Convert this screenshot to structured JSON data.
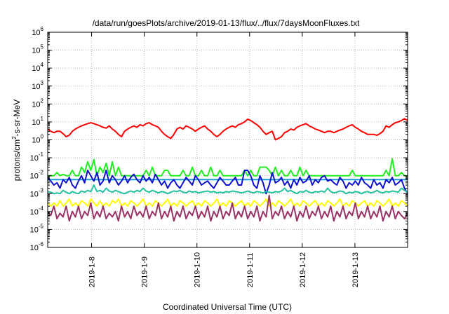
{
  "chart_data": {
    "type": "line",
    "title": "/data/run/goesPlots/archive/2019-01-13/flux/../flux/7daysMoonFluxes.txt",
    "xlabel": "Coordinated Universal Time (UTC)",
    "ylabel_parts": {
      "base": "protons/cm",
      "sup": "2",
      "rest": "-s-sr-MeV"
    },
    "x_range": [
      "2019-01-07T04:00",
      "2019-01-14T00:00"
    ],
    "x_ticks": [
      "2019-1-8",
      "2019-1-9",
      "2019-1-10",
      "2019-1-11",
      "2019-1-12",
      "2019-1-13"
    ],
    "y_scale": "log",
    "y_range": [
      1e-06,
      1000000.0
    ],
    "y_ticks": [
      {
        "value": 1e-06,
        "base": "10",
        "exp": "-6"
      },
      {
        "value": 1e-05,
        "base": "10",
        "exp": "-5"
      },
      {
        "value": 0.0001,
        "base": "10",
        "exp": "-4"
      },
      {
        "value": 0.001,
        "base": "10",
        "exp": "-3"
      },
      {
        "value": 0.01,
        "base": "10",
        "exp": "-2"
      },
      {
        "value": 0.1,
        "base": "10",
        "exp": "-1"
      },
      {
        "value": 1,
        "base": "10",
        "exp": "0"
      },
      {
        "value": 10,
        "base": "10",
        "exp": "1"
      },
      {
        "value": 100,
        "base": "10",
        "exp": "2"
      },
      {
        "value": 1000,
        "base": "10",
        "exp": "3"
      },
      {
        "value": 10000,
        "base": "10",
        "exp": "4"
      },
      {
        "value": 100000,
        "base": "10",
        "exp": "5"
      },
      {
        "value": 1000000,
        "base": "10",
        "exp": "6"
      }
    ],
    "grid": true,
    "series": [
      {
        "color": "#ff0000",
        "values": [
          4,
          3,
          2.5,
          3,
          3,
          2.2,
          1.5,
          1.8,
          3,
          4,
          5,
          6,
          7,
          8,
          9,
          8,
          7,
          6,
          5,
          4.5,
          6,
          4,
          3,
          2,
          1.5,
          3,
          4,
          5,
          6,
          5,
          7,
          6,
          8,
          9,
          7,
          6,
          5,
          3,
          2,
          1.5,
          1.2,
          2,
          4,
          5,
          4,
          6,
          5,
          4,
          3,
          4,
          5,
          6,
          4,
          3,
          2,
          1.5,
          2,
          3,
          4,
          5,
          6,
          5,
          7,
          8,
          10,
          14,
          12,
          9,
          7,
          5,
          3,
          2,
          2.5,
          3,
          1,
          1.2,
          1.5,
          2.5,
          3,
          4,
          3.5,
          5,
          6,
          7,
          8,
          6,
          5,
          4,
          3.5,
          3,
          2.5,
          3,
          3,
          2.5,
          3,
          3.5,
          4,
          5,
          6,
          7,
          5,
          4,
          3,
          2.5,
          2,
          2,
          2,
          1.8,
          2.2,
          3,
          6,
          5,
          7,
          9,
          10,
          12,
          15,
          12
        ]
      },
      {
        "color": "#1a9ad9",
        "values": [
          0.006,
          0.006,
          0.006,
          0.006,
          0.006,
          0.006,
          0.006,
          0.006,
          0.006,
          0.006,
          0.006,
          0.006,
          0.006,
          0.006,
          0.006,
          0.006,
          0.006,
          0.006,
          0.006,
          0.006,
          0.006,
          0.006,
          0.006,
          0.006,
          0.006,
          0.006,
          0.006,
          0.006,
          0.006,
          0.006,
          0.006,
          0.006,
          0.006,
          0.006,
          0.006,
          0.006,
          0.006,
          0.006,
          0.006,
          0.006,
          0.006,
          0.006,
          0.006,
          0.006,
          0.006,
          0.006,
          0.006,
          0.006,
          0.006,
          0.006,
          0.006,
          0.006,
          0.006,
          0.006,
          0.006,
          0.006,
          0.006,
          0.006,
          0.006,
          0.006,
          0.006,
          0.006,
          0.006,
          0.006,
          0.006,
          0.006,
          0.006,
          0.006,
          0.006,
          0.006,
          0.006,
          0.006,
          0.006,
          0.006,
          0.006,
          0.006,
          0.006,
          0.006,
          0.006,
          0.006,
          0.006,
          0.006,
          0.006,
          0.006,
          0.006,
          0.006,
          0.006,
          0.006,
          0.006,
          0.006,
          0.006,
          0.006,
          0.006,
          0.006,
          0.006,
          0.006,
          0.006,
          0.006,
          0.006,
          0.006,
          0.006,
          0.006,
          0.006,
          0.006,
          0.006,
          0.006,
          0.006,
          0.006,
          0.006,
          0.006,
          0.006,
          0.006,
          0.006,
          0.006,
          0.006,
          0.006,
          0.006,
          0.006
        ]
      },
      {
        "color": "#22ee22",
        "values": [
          0.01,
          0.01,
          0.01,
          0.015,
          0.01,
          0.012,
          0.01,
          0.01,
          0.02,
          0.01,
          0.01,
          0.03,
          0.015,
          0.06,
          0.02,
          0.08,
          0.01,
          0.03,
          0.015,
          0.05,
          0.01,
          0.06,
          0.01,
          0.03,
          0.01,
          0.01,
          0.01,
          0.01,
          0.01,
          0.01,
          0.01,
          0.01,
          0.02,
          0.01,
          0.03,
          0.01,
          0.01,
          0.01,
          0.02,
          0.02,
          0.01,
          0.01,
          0.01,
          0.01,
          0.02,
          0.01,
          0.01,
          0.03,
          0.01,
          0.01,
          0.02,
          0.01,
          0.01,
          0.03,
          0.01,
          0.01,
          0.02,
          0.01,
          0.01,
          0.01,
          0.01,
          0.01,
          0.01,
          0.01,
          0.02,
          0.01,
          0.02,
          0.01,
          0.01,
          0.03,
          0.03,
          0.03,
          0.02,
          0.01,
          0.03,
          0.01,
          0.02,
          0.01,
          0.01,
          0.02,
          0.01,
          0.01,
          0.03,
          0.01,
          0.02,
          0.01,
          0.01,
          0.01,
          0.01,
          0.01,
          0.01,
          0.01,
          0.01,
          0.01,
          0.01,
          0.01,
          0.01,
          0.01,
          0.01,
          0.02,
          0.01,
          0.01,
          0.01,
          0.01,
          0.01,
          0.01,
          0.01,
          0.01,
          0.01,
          0.01,
          0.02,
          0.01,
          0.09,
          0.01,
          0.01,
          0.015,
          0.01,
          0.01
        ]
      },
      {
        "color": "#1010cc",
        "values": [
          0.008,
          0.005,
          0.003,
          0.004,
          0.002,
          0.006,
          0.004,
          0.008,
          0.003,
          0.002,
          0.005,
          0.01,
          0.004,
          0.02,
          0.01,
          0.005,
          0.015,
          0.003,
          0.005,
          0.02,
          0.004,
          0.01,
          0.006,
          0.003,
          0.005,
          0.01,
          0.004,
          0.008,
          0.012,
          0.006,
          0.004,
          0.01,
          0.005,
          0.008,
          0.004,
          0.012,
          0.006,
          0.003,
          0.005,
          0.002,
          0.004,
          0.006,
          0.003,
          0.002,
          0.004,
          0.008,
          0.005,
          0.003,
          0.01,
          0.006,
          0.003,
          0.004,
          0.005,
          0.003,
          0.002,
          0.004,
          0.008,
          0.005,
          0.003,
          0.003,
          0.005,
          0.008,
          0.003,
          0.003,
          0.02,
          0.02,
          0.01,
          0.003,
          0.002,
          0.01,
          0.004,
          0.001,
          0.003,
          0.015,
          0.004,
          0.005,
          0.008,
          0.003,
          0.005,
          0.002,
          0.006,
          0.003,
          0.008,
          0.004,
          0.005,
          0.01,
          0.003,
          0.006,
          0.004,
          0.008,
          0.01,
          0.005,
          0.006,
          0.004,
          0.003,
          0.008,
          0.005,
          0.002,
          0.004,
          0.003,
          0.005,
          0.003,
          0.008,
          0.004,
          0.003,
          0.002,
          0.006,
          0.003,
          0.004,
          0.002,
          0.006,
          0.004,
          0.008,
          0.003,
          0.004,
          0.006,
          0.002,
          0.001
        ]
      },
      {
        "color": "#20c0a0",
        "values": [
          0.0013,
          0.0012,
          0.001,
          0.0011,
          0.001,
          0.0015,
          0.0012,
          0.001,
          0.0013,
          0.0011,
          0.001,
          0.0014,
          0.0012,
          0.0015,
          0.0013,
          0.003,
          0.0013,
          0.0015,
          0.0012,
          0.002,
          0.0014,
          0.0012,
          0.0015,
          0.0013,
          0.0011,
          0.001,
          0.0012,
          0.0014,
          0.0012,
          0.0015,
          0.0013,
          0.002,
          0.0014,
          0.0012,
          0.0015,
          0.0013,
          0.0011,
          0.0013,
          0.0012,
          0.001,
          0.0012,
          0.0014,
          0.0013,
          0.0015,
          0.0012,
          0.0011,
          0.0014,
          0.0012,
          0.0013,
          0.0011,
          0.0012,
          0.0013,
          0.0014,
          0.0012,
          0.0013,
          0.0011,
          0.0012,
          0.0011,
          0.0013,
          0.0012,
          0.0014,
          0.0013,
          0.0012,
          0.0011,
          0.0012,
          0.0014,
          0.0012,
          0.0011,
          0.0013,
          0.0012,
          0.0011,
          0.0013,
          0.0012,
          0.0011,
          0.0013,
          0.0012,
          0.0014,
          0.002,
          0.0013,
          0.0015,
          0.0012,
          0.001,
          0.0013,
          0.0012,
          0.0015,
          0.0012,
          0.0011,
          0.0013,
          0.0012,
          0.0014,
          0.0012,
          0.002,
          0.0013,
          0.0011,
          0.0012,
          0.0014,
          0.0013,
          0.001,
          0.0012,
          0.0011,
          0.0013,
          0.0012,
          0.001,
          0.0012,
          0.0013,
          0.0011,
          0.0012,
          0.0015,
          0.0012,
          0.0011,
          0.0013,
          0.0012,
          0.0014,
          0.0013,
          0.0012,
          0.002,
          0.0015,
          0.0012
        ]
      },
      {
        "color": "#ffff00",
        "values": [
          0.0003,
          0.0002,
          0.0003,
          0.0002,
          0.0004,
          0.0002,
          0.0003,
          0.0005,
          0.0002,
          0.0003,
          0.0002,
          0.0004,
          0.0003,
          0.0002,
          0.0005,
          0.0003,
          0.0002,
          0.0004,
          0.0002,
          0.0003,
          0.0002,
          0.0004,
          0.0003,
          0.0005,
          0.0002,
          0.0003,
          0.0002,
          0.0004,
          0.0003,
          0.0002,
          0.0003,
          0.0005,
          0.0002,
          0.0003,
          0.0002,
          0.0004,
          0.0003,
          0.0002,
          0.0003,
          0.0005,
          0.0002,
          0.0003,
          0.0002,
          0.0004,
          0.0003,
          0.0002,
          0.0003,
          0.0004,
          0.0002,
          0.0003,
          0.0002,
          0.0004,
          0.0003,
          0.0002,
          0.0003,
          0.0005,
          0.0002,
          0.0003,
          0.0002,
          0.0004,
          0.0003,
          0.0002,
          0.0003,
          0.0004,
          0.0002,
          0.0003,
          0.0002,
          0.0004,
          0.0003,
          0.0002,
          0.0003,
          0.0005,
          0.0002,
          0.0003,
          0.0002,
          0.0004,
          0.0003,
          0.0002,
          0.0003,
          0.0005,
          0.0002,
          0.0003,
          0.0002,
          0.0004,
          0.0003,
          0.0002,
          0.0003,
          0.0004,
          0.0002,
          0.0003,
          0.0002,
          0.0004,
          0.0003,
          0.0002,
          0.0003,
          0.0005,
          0.0002,
          0.0003,
          0.0002,
          0.0004,
          0.0003,
          0.0002,
          0.0003,
          0.0004,
          0.0002,
          0.0003,
          0.0002,
          0.0004,
          0.0003,
          0.0002,
          0.0003,
          0.0005,
          0.0002,
          0.0003,
          0.0002,
          0.0004,
          0.0003,
          0.0002
        ]
      },
      {
        "color": "#993366",
        "values": [
          0.0001,
          6e-05,
          0.0002,
          4e-05,
          8e-05,
          5e-05,
          0.0002,
          3e-05,
          0.0001,
          5e-05,
          0.0002,
          4e-05,
          0.0001,
          6e-05,
          0.0003,
          4e-05,
          0.0001,
          5e-05,
          0.0002,
          4e-05,
          8e-05,
          5e-05,
          0.0001,
          3e-05,
          0.0002,
          5e-05,
          0.0001,
          4e-05,
          0.0002,
          6e-05,
          0.0001,
          5e-05,
          0.0002,
          4e-05,
          0.0001,
          6e-05,
          0.0003,
          4e-05,
          0.0001,
          5e-05,
          0.0002,
          3e-05,
          0.0001,
          5e-05,
          0.0002,
          4e-05,
          0.0001,
          6e-05,
          0.0002,
          4e-05,
          0.0001,
          5e-05,
          0.0002,
          3e-05,
          0.0001,
          5e-05,
          0.0002,
          4e-05,
          0.0001,
          6e-05,
          0.0003,
          4e-05,
          0.0001,
          5e-05,
          0.0002,
          4e-05,
          0.0001,
          5e-05,
          0.0002,
          3e-05,
          0.0001,
          5e-05,
          0.0008,
          4e-05,
          0.0001,
          6e-05,
          0.0002,
          4e-05,
          0.0001,
          5e-05,
          0.0002,
          3e-05,
          0.0001,
          5e-05,
          0.0002,
          4e-05,
          0.0001,
          6e-05,
          0.0002,
          4e-05,
          0.0001,
          5e-05,
          0.0002,
          3e-05,
          0.0001,
          5e-05,
          0.0002,
          4e-05,
          0.0001,
          6e-05,
          0.0003,
          4e-05,
          0.0001,
          5e-05,
          0.0002,
          4e-05,
          0.0001,
          5e-05,
          0.0002,
          3e-05,
          0.0001,
          5e-05,
          0.0002,
          4e-05,
          0.0001,
          6e-05,
          4e-05,
          8e-05
        ]
      }
    ]
  }
}
